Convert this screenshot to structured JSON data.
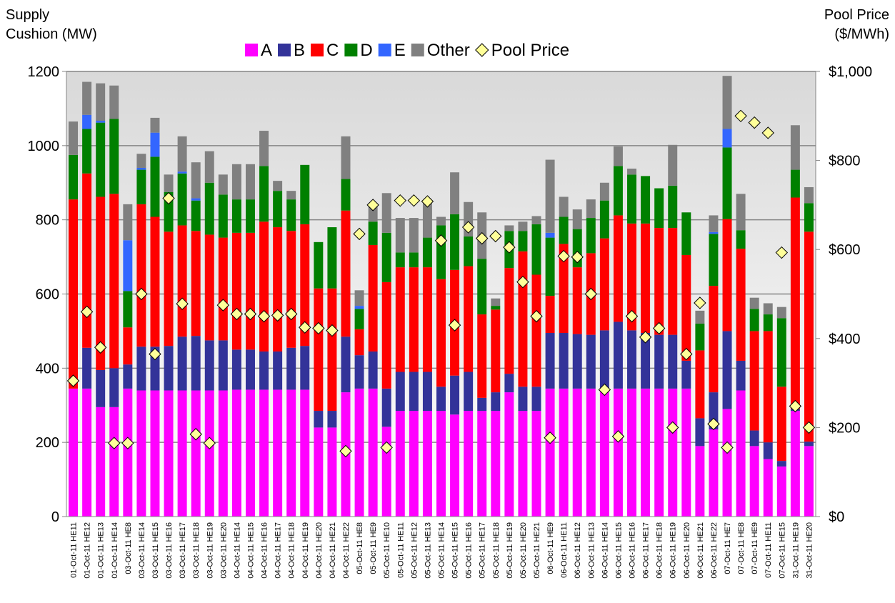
{
  "chart_data": {
    "type": "bar",
    "stacked": true,
    "y_label": "Supply Cushion (MW)",
    "y2_label": "Pool Price ($/MWh)",
    "categories": [
      "01-Oct-11 HE11",
      "01-Oct-11 HE12",
      "01-Oct-11 HE13",
      "01-Oct-11 HE14",
      "03-Oct-11 HE8",
      "03-Oct-11 HE14",
      "03-Oct-11 HE15",
      "03-Oct-11 HE16",
      "03-Oct-11 HE17",
      "03-Oct-11 HE18",
      "03-Oct-11 HE19",
      "03-Oct-11 HE20",
      "04-Oct-11 HE14",
      "04-Oct-11 HE15",
      "04-Oct-11 HE16",
      "04-Oct-11 HE17",
      "04-Oct-11 HE18",
      "04-Oct-11 HE19",
      "04-Oct-11 HE20",
      "04-Oct-11 HE21",
      "04-Oct-11 HE22",
      "05-Oct-11 HE8",
      "05-Oct-11 HE9",
      "05-Oct-11 HE10",
      "05-Oct-11 HE11",
      "05-Oct-11 HE12",
      "05-Oct-11 HE13",
      "05-Oct-11 HE14",
      "05-Oct-11 HE15",
      "05-Oct-11 HE16",
      "05-Oct-11 HE17",
      "05-Oct-11 HE18",
      "05-Oct-11 HE19",
      "05-Oct-11 HE20",
      "05-Oct-11 HE21",
      "06-Oct-11 HE9",
      "06-Oct-11 HE11",
      "06-Oct-11 HE12",
      "06-Oct-11 HE13",
      "06-Oct-11 HE14",
      "06-Oct-11 HE15",
      "06-Oct-11 HE16",
      "06-Oct-11 HE17",
      "06-Oct-11 HE18",
      "06-Oct-11 HE19",
      "06-Oct-11 HE20",
      "06-Oct-11 HE21",
      "06-Oct-11 HE22",
      "07-Oct-11 HE7",
      "07-Oct-11 HE8",
      "07-Oct-11 HE9",
      "07-Oct-11 HE11",
      "07-Oct-11 HE15",
      "31-Oct-11 HE19",
      "31-Oct-11 HE20"
    ],
    "series": [
      {
        "name": "A",
        "color": "#ff00ff",
        "values": [
          345,
          345,
          295,
          295,
          345,
          340,
          340,
          340,
          340,
          340,
          340,
          340,
          342,
          342,
          342,
          342,
          342,
          342,
          240,
          240,
          335,
          345,
          345,
          242,
          285,
          285,
          285,
          285,
          275,
          285,
          285,
          285,
          335,
          285,
          285,
          345,
          345,
          345,
          345,
          345,
          345,
          345,
          345,
          345,
          345,
          345,
          190,
          235,
          290,
          340,
          190,
          155,
          135,
          285,
          190
        ]
      },
      {
        "name": "B",
        "color": "#333399",
        "values": [
          0,
          110,
          100,
          105,
          65,
          118,
          118,
          120,
          145,
          147,
          135,
          135,
          108,
          108,
          103,
          103,
          113,
          118,
          45,
          45,
          150,
          90,
          100,
          103,
          105,
          105,
          105,
          65,
          105,
          105,
          35,
          50,
          50,
          65,
          65,
          150,
          150,
          147,
          145,
          157,
          180,
          157,
          150,
          145,
          145,
          75,
          75,
          100,
          210,
          80,
          42,
          45,
          15,
          5,
          12
        ]
      },
      {
        "name": "C",
        "color": "#ff0000",
        "values": [
          510,
          470,
          467,
          470,
          100,
          384,
          350,
          308,
          300,
          283,
          285,
          277,
          315,
          315,
          350,
          335,
          315,
          328,
          330,
          330,
          340,
          70,
          287,
          287,
          282,
          282,
          282,
          290,
          285,
          285,
          225,
          223,
          285,
          365,
          302,
          100,
          240,
          180,
          220,
          248,
          287,
          288,
          295,
          288,
          288,
          285,
          183,
          287,
          302,
          302,
          268,
          300,
          200,
          570,
          566
        ]
      },
      {
        "name": "D",
        "color": "#008000",
        "values": [
          120,
          120,
          200,
          202,
          98,
          93,
          162,
          107,
          140,
          82,
          140,
          116,
          90,
          90,
          150,
          98,
          85,
          160,
          125,
          165,
          85,
          55,
          63,
          133,
          40,
          40,
          80,
          145,
          150,
          80,
          150,
          10,
          100,
          55,
          136,
          157,
          73,
          103,
          95,
          102,
          133,
          132,
          128,
          107,
          114,
          115,
          72,
          140,
          193,
          50,
          60,
          45,
          185,
          75,
          77
        ]
      },
      {
        "name": "E",
        "color": "#3366ff",
        "values": [
          0,
          38,
          5,
          0,
          137,
          5,
          65,
          0,
          5,
          6,
          0,
          0,
          0,
          0,
          0,
          0,
          0,
          0,
          0,
          0,
          0,
          8,
          0,
          0,
          0,
          0,
          0,
          0,
          0,
          0,
          0,
          0,
          0,
          0,
          0,
          13,
          0,
          0,
          0,
          0,
          0,
          0,
          0,
          0,
          0,
          0,
          0,
          5,
          50,
          0,
          0,
          0,
          0,
          0,
          0
        ]
      },
      {
        "name": "Other",
        "color": "#808080",
        "values": [
          90,
          89,
          101,
          90,
          97,
          38,
          40,
          47,
          95,
          97,
          85,
          54,
          95,
          95,
          95,
          27,
          23,
          0,
          0,
          0,
          115,
          42,
          50,
          107,
          93,
          93,
          98,
          23,
          113,
          93,
          125,
          20,
          15,
          25,
          22,
          197,
          54,
          53,
          50,
          48,
          53,
          16,
          0,
          0,
          110,
          0,
          35,
          45,
          143,
          98,
          30,
          30,
          30,
          120,
          43
        ]
      },
      {
        "name": "Pool Price",
        "color": "#ffff99",
        "axis": "y2",
        "values": [
          305,
          460,
          380,
          165,
          165,
          500,
          365,
          715,
          478,
          185,
          165,
          475,
          455,
          455,
          450,
          452,
          455,
          425,
          423,
          418,
          147,
          635,
          700,
          155,
          710,
          710,
          708,
          620,
          430,
          650,
          625,
          630,
          605,
          527,
          450,
          177,
          585,
          583,
          500,
          285,
          180,
          450,
          403,
          423,
          200,
          365,
          480,
          208,
          155,
          900,
          885,
          862,
          593,
          248,
          200
        ]
      }
    ],
    "ylim": [
      0,
      1200
    ],
    "yticks": [
      0,
      200,
      400,
      600,
      800,
      1000,
      1200
    ],
    "y2lim": [
      0,
      1000
    ],
    "y2ticks": [
      {
        "value": 0,
        "label": "$0"
      },
      {
        "value": 200,
        "label": "$200"
      },
      {
        "value": 400,
        "label": "$400"
      },
      {
        "value": 600,
        "label": "$600"
      },
      {
        "value": 800,
        "label": "$800"
      },
      {
        "value": 1000,
        "label": "$1,000"
      }
    ],
    "grid": true,
    "legend": "top"
  }
}
